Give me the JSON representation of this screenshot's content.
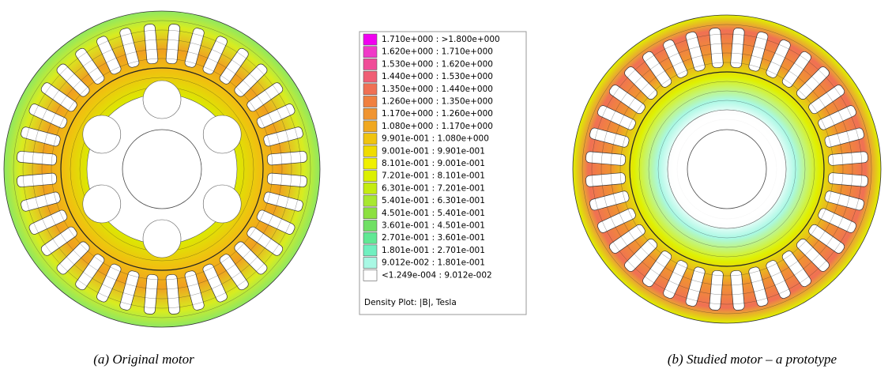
{
  "legend": {
    "entries": [
      {
        "label": "1.710e+000 : >1.800e+000",
        "color": "#f000f0"
      },
      {
        "label": "1.620e+000 : 1.710e+000",
        "color": "#f038c8"
      },
      {
        "label": "1.530e+000 : 1.620e+000",
        "color": "#f04c98"
      },
      {
        "label": "1.440e+000 : 1.530e+000",
        "color": "#f05e74"
      },
      {
        "label": "1.350e+000 : 1.440e+000",
        "color": "#f07054"
      },
      {
        "label": "1.260e+000 : 1.350e+000",
        "color": "#f08040"
      },
      {
        "label": "1.170e+000 : 1.260e+000",
        "color": "#f09430"
      },
      {
        "label": "1.080e+000 : 1.170e+000",
        "color": "#f0a820"
      },
      {
        "label": "9.901e-001 : 1.080e+000",
        "color": "#f0c410"
      },
      {
        "label": "9.001e-001 : 9.901e-001",
        "color": "#f0dc00"
      },
      {
        "label": "8.101e-001 : 9.001e-001",
        "color": "#f0f000"
      },
      {
        "label": "7.201e-001 : 8.101e-001",
        "color": "#dcf000"
      },
      {
        "label": "6.301e-001 : 7.201e-001",
        "color": "#c4ec10"
      },
      {
        "label": "5.401e-001 : 6.301e-001",
        "color": "#a8e830"
      },
      {
        "label": "4.501e-001 : 5.401e-001",
        "color": "#8ce040"
      },
      {
        "label": "3.601e-001 : 4.501e-001",
        "color": "#70e064"
      },
      {
        "label": "2.701e-001 : 3.601e-001",
        "color": "#60e894"
      },
      {
        "label": "1.801e-001 : 2.701e-001",
        "color": "#70f0c0"
      },
      {
        "label": "9.012e-002 : 1.801e-001",
        "color": "#a8f8e4"
      },
      {
        "label": "<1.249e-004 : 9.012e-002",
        "color": "#ffffff"
      }
    ],
    "title": "Density Plot: |B|, Tesla"
  },
  "captions": [
    "(a) Original motor",
    "(b) Studied motor – a prototype"
  ]
}
